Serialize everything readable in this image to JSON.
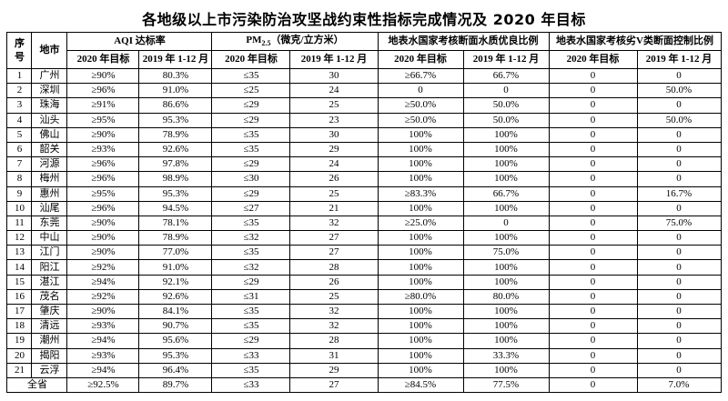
{
  "title": "各地级以上市污染防治攻坚战约束性指标完成情况及 2020 年目标",
  "table": {
    "corner_headers": {
      "sn": "序号",
      "city": "地市"
    },
    "groups": [
      {
        "label": "AQI 达标率"
      },
      {
        "prefix": "PM",
        "sub": "2.5",
        "suffix": "（微克/立方米）"
      },
      {
        "label": "地表水国家考核断面水质优良比例"
      },
      {
        "label": "地表水国家考核劣V类断面控制比例"
      }
    ],
    "subheaders": {
      "target": "2020 年目标",
      "actual": "2019 年 1-12 月"
    },
    "rows": [
      {
        "sn": "1",
        "city": "广州",
        "values": [
          "≥90%",
          "80.3%",
          "≤35",
          "30",
          "≥66.7%",
          "66.7%",
          "0",
          "0"
        ]
      },
      {
        "sn": "2",
        "city": "深圳",
        "values": [
          "≥96%",
          "91.0%",
          "≤25",
          "24",
          "0",
          "0",
          "0",
          "50.0%"
        ]
      },
      {
        "sn": "3",
        "city": "珠海",
        "values": [
          "≥91%",
          "86.6%",
          "≤29",
          "25",
          "≥50.0%",
          "50.0%",
          "0",
          "0"
        ]
      },
      {
        "sn": "4",
        "city": "汕头",
        "values": [
          "≥95%",
          "95.3%",
          "≤29",
          "23",
          "≥50.0%",
          "50.0%",
          "0",
          "50.0%"
        ]
      },
      {
        "sn": "5",
        "city": "佛山",
        "values": [
          "≥90%",
          "78.9%",
          "≤35",
          "30",
          "100%",
          "100%",
          "0",
          "0"
        ]
      },
      {
        "sn": "6",
        "city": "韶关",
        "values": [
          "≥93%",
          "92.6%",
          "≤35",
          "29",
          "100%",
          "100%",
          "0",
          "0"
        ]
      },
      {
        "sn": "7",
        "city": "河源",
        "values": [
          "≥96%",
          "97.8%",
          "≤29",
          "24",
          "100%",
          "100%",
          "0",
          "0"
        ]
      },
      {
        "sn": "8",
        "city": "梅州",
        "values": [
          "≥96%",
          "98.9%",
          "≤30",
          "26",
          "100%",
          "100%",
          "0",
          "0"
        ]
      },
      {
        "sn": "9",
        "city": "惠州",
        "values": [
          "≥95%",
          "95.3%",
          "≤29",
          "25",
          "≥83.3%",
          "66.7%",
          "0",
          "16.7%"
        ]
      },
      {
        "sn": "10",
        "city": "汕尾",
        "values": [
          "≥96%",
          "94.5%",
          "≤27",
          "21",
          "100%",
          "100%",
          "0",
          "0"
        ]
      },
      {
        "sn": "11",
        "city": "东莞",
        "values": [
          "≥90%",
          "78.1%",
          "≤35",
          "32",
          "≥25.0%",
          "0",
          "0",
          "75.0%"
        ]
      },
      {
        "sn": "12",
        "city": "中山",
        "values": [
          "≥90%",
          "78.9%",
          "≤32",
          "27",
          "100%",
          "100%",
          "0",
          "0"
        ]
      },
      {
        "sn": "13",
        "city": "江门",
        "values": [
          "≥90%",
          "77.0%",
          "≤35",
          "27",
          "100%",
          "75.0%",
          "0",
          "0"
        ]
      },
      {
        "sn": "14",
        "city": "阳江",
        "values": [
          "≥92%",
          "91.0%",
          "≤32",
          "28",
          "100%",
          "100%",
          "0",
          "0"
        ]
      },
      {
        "sn": "15",
        "city": "湛江",
        "values": [
          "≥94%",
          "92.1%",
          "≤29",
          "26",
          "100%",
          "100%",
          "0",
          "0"
        ]
      },
      {
        "sn": "16",
        "city": "茂名",
        "values": [
          "≥92%",
          "92.6%",
          "≤31",
          "25",
          "≥80.0%",
          "80.0%",
          "0",
          "0"
        ]
      },
      {
        "sn": "17",
        "city": "肇庆",
        "values": [
          "≥90%",
          "84.1%",
          "≤35",
          "32",
          "100%",
          "100%",
          "0",
          "0"
        ]
      },
      {
        "sn": "18",
        "city": "清远",
        "values": [
          "≥93%",
          "90.7%",
          "≤35",
          "32",
          "100%",
          "100%",
          "0",
          "0"
        ]
      },
      {
        "sn": "19",
        "city": "潮州",
        "values": [
          "≥94%",
          "95.6%",
          "≤29",
          "28",
          "100%",
          "100%",
          "0",
          "0"
        ]
      },
      {
        "sn": "20",
        "city": "揭阳",
        "values": [
          "≥93%",
          "95.3%",
          "≤33",
          "31",
          "100%",
          "33.3%",
          "0",
          "0"
        ]
      },
      {
        "sn": "21",
        "city": "云浮",
        "values": [
          "≥94%",
          "96.4%",
          "≤35",
          "29",
          "100%",
          "100%",
          "0",
          "0"
        ]
      },
      {
        "sn": null,
        "city": "全省",
        "values": [
          "≥92.5%",
          "89.7%",
          "≤33",
          "27",
          "≥84.5%",
          "77.5%",
          "0",
          "7.0%"
        ]
      }
    ]
  }
}
